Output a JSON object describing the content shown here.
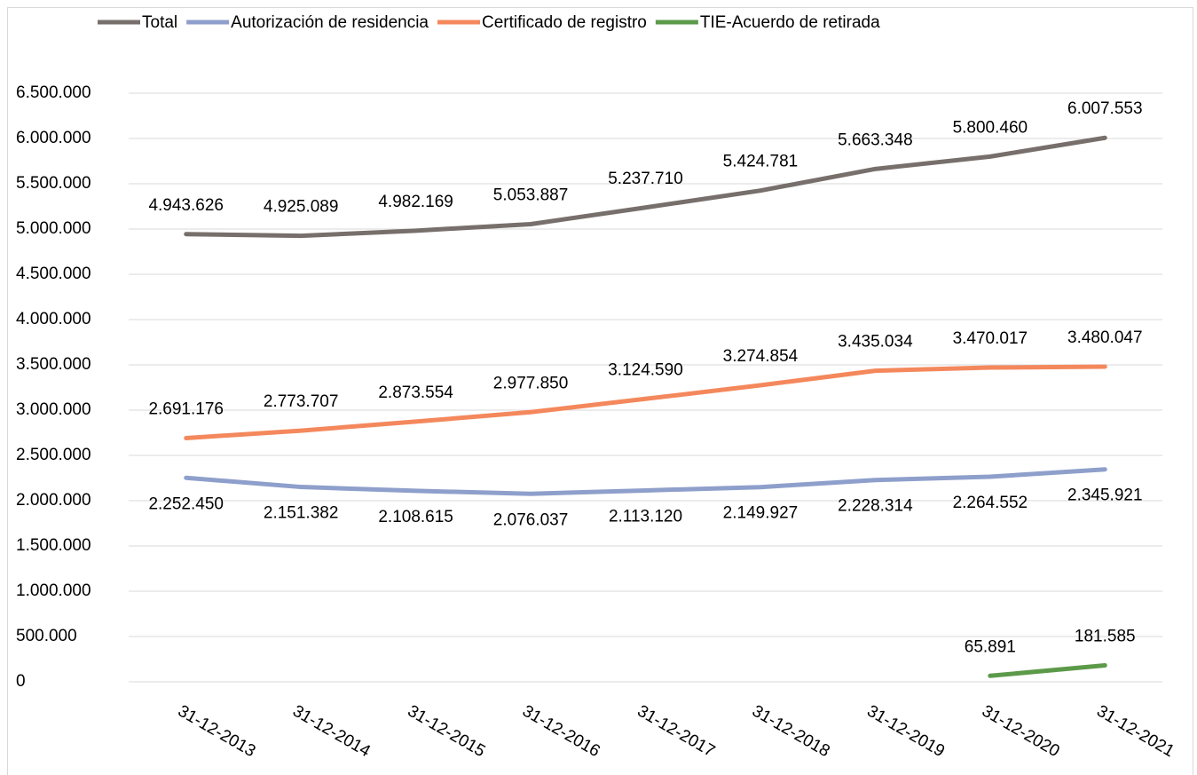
{
  "chart_data": {
    "type": "line",
    "categories": [
      "31-12-2013",
      "31-12-2014",
      "31-12-2015",
      "31-12-2016",
      "31-12-2017",
      "31-12-2018",
      "31-12-2019",
      "31-12-2020",
      "31-12-2021"
    ],
    "series": [
      {
        "name": "Total",
        "color": "#776f6b",
        "label_position": "above",
        "values": [
          4943626,
          4925089,
          4982169,
          5053887,
          5237710,
          5424781,
          5663348,
          5800460,
          6007553
        ],
        "value_labels": [
          "4.943.626",
          "4.925.089",
          "4.982.169",
          "5.053.887",
          "5.237.710",
          "5.424.781",
          "5.663.348",
          "5.800.460",
          "6.007.553"
        ]
      },
      {
        "name": "Autorización de residencia",
        "color": "#8e9fcb",
        "label_position": "below",
        "values": [
          2252450,
          2151382,
          2108615,
          2076037,
          2113120,
          2149927,
          2228314,
          2264552,
          2345921
        ],
        "value_labels": [
          "2.252.450",
          "2.151.382",
          "2.108.615",
          "2.076.037",
          "2.113.120",
          "2.149.927",
          "2.228.314",
          "2.264.552",
          "2.345.921"
        ]
      },
      {
        "name": "Certificado de registro",
        "color": "#f4885c",
        "label_position": "above",
        "values": [
          2691176,
          2773707,
          2873554,
          2977850,
          3124590,
          3274854,
          3435034,
          3470017,
          3480047
        ],
        "value_labels": [
          "2.691.176",
          "2.773.707",
          "2.873.554",
          "2.977.850",
          "3.124.590",
          "3.274.854",
          "3.435.034",
          "3.470.017",
          "3.480.047"
        ]
      },
      {
        "name": "TIE-Acuerdo de retirada",
        "color": "#5c9a4a",
        "label_position": "above",
        "values": [
          null,
          null,
          null,
          null,
          null,
          null,
          null,
          65891,
          181585
        ],
        "value_labels": [
          null,
          null,
          null,
          null,
          null,
          null,
          null,
          "65.891",
          "181.585"
        ]
      }
    ],
    "ylim": [
      0,
      6500000
    ],
    "yticks": [
      0,
      {
        "value": 500000,
        "label": "500.000"
      },
      {
        "value": 1000000,
        "label": "1.000.000"
      },
      {
        "value": 1500000,
        "label": "1.500.000"
      },
      {
        "value": 2000000,
        "label": "2.000.000"
      },
      {
        "value": 2500000,
        "label": "2.500.000"
      },
      {
        "value": 3000000,
        "label": "3.000.000"
      },
      {
        "value": 3500000,
        "label": "3.500.000"
      },
      {
        "value": 4000000,
        "label": "4.000.000"
      },
      {
        "value": 4500000,
        "label": "4.500.000"
      },
      {
        "value": 5000000,
        "label": "5.000.000"
      },
      {
        "value": 5500000,
        "label": "5.500.000"
      },
      {
        "value": 6000000,
        "label": "6.000.000"
      },
      {
        "value": 6500000,
        "label": "6.500.000"
      }
    ],
    "grid": true,
    "legend": "top"
  }
}
